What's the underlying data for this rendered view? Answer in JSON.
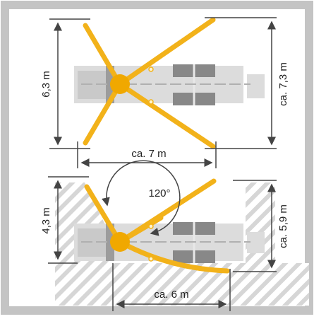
{
  "colors": {
    "frame": "#c4c4c4",
    "boom": "#f2b21a",
    "boom_dark": "#f0a800",
    "vehicle_light": "#d8d8d8",
    "vehicle_dark": "#9a9a9a",
    "centerline": "#b8b8b8",
    "dimension_line": "#444444",
    "hatch": "#cfcfcf"
  },
  "top_diagram": {
    "depth_label": "6,3 m",
    "width_label": "ca. 7 m",
    "span_label": "ca. 7,3 m"
  },
  "bottom_diagram": {
    "depth_label": "4,3 m",
    "width_label": "ca. 6 m",
    "span_label": "ca. 5,9 m",
    "angle_label": "120°"
  }
}
